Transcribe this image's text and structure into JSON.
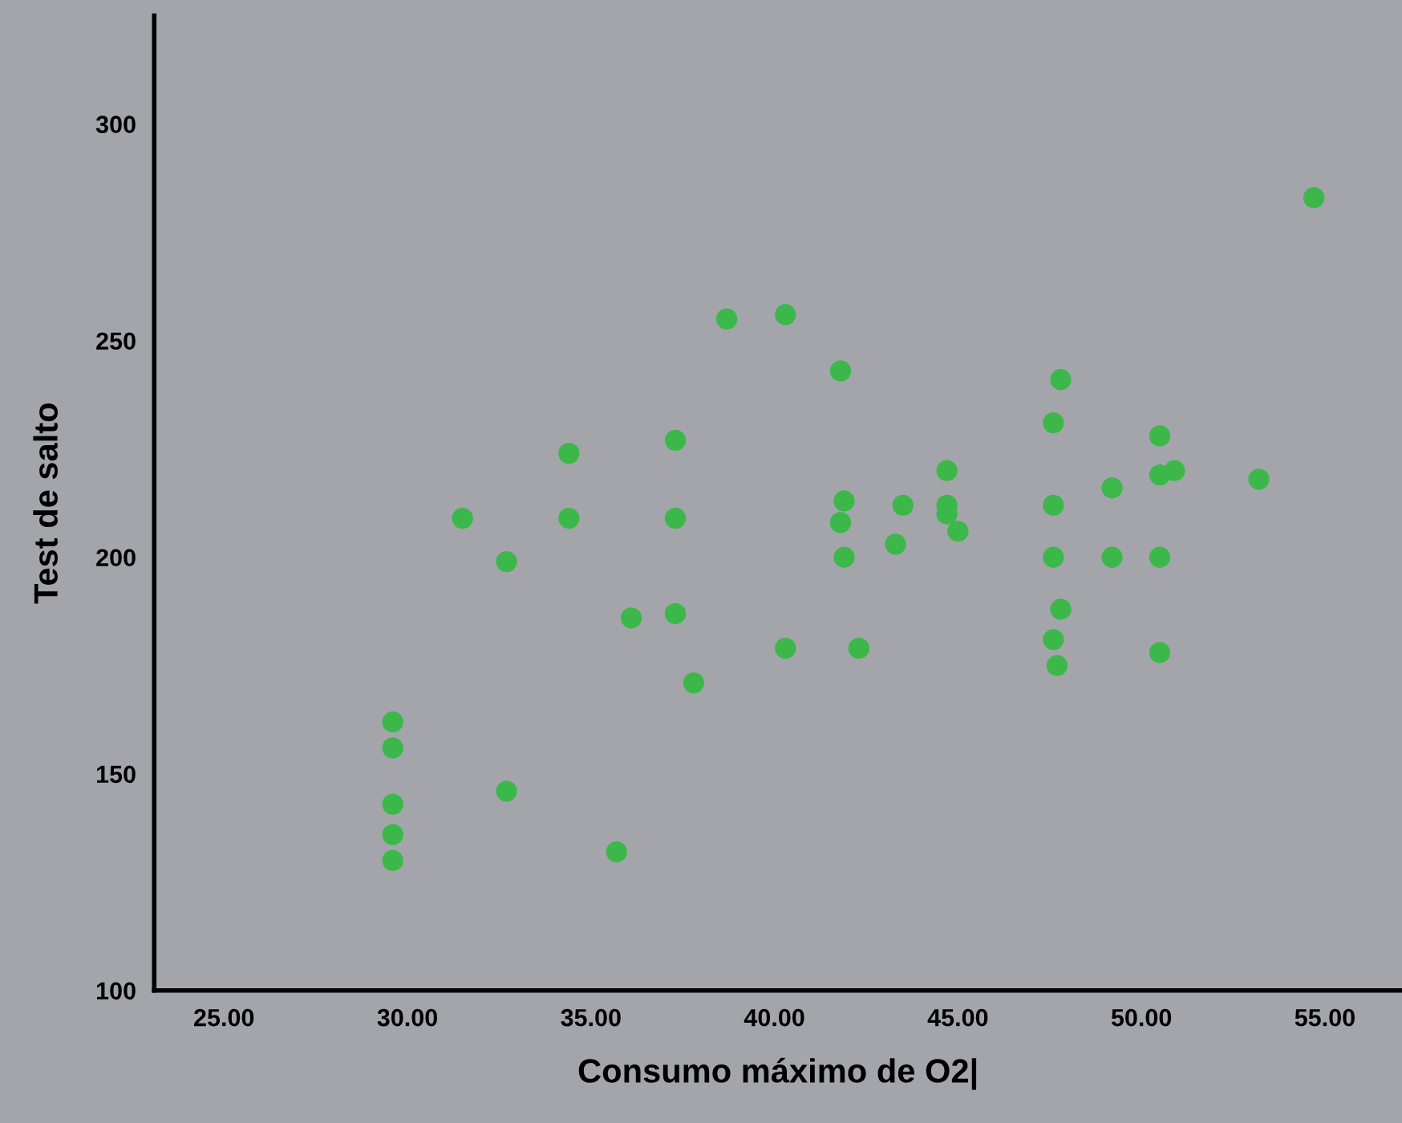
{
  "chart_data": {
    "type": "scatter",
    "xlabel": "Consumo máximo de O2|",
    "ylabel": "Test de salto",
    "xlim": [
      23.1,
      57.1
    ],
    "ylim": [
      100,
      325
    ],
    "xticks": [
      {
        "value": 25,
        "label": "25.00"
      },
      {
        "value": 30,
        "label": "30.00"
      },
      {
        "value": 35,
        "label": "35.00"
      },
      {
        "value": 40,
        "label": "40.00"
      },
      {
        "value": 45,
        "label": "45.00"
      },
      {
        "value": 50,
        "label": "50.00"
      },
      {
        "value": 55,
        "label": "55.00"
      }
    ],
    "yticks": [
      100,
      150,
      200,
      250,
      300
    ],
    "grid": false,
    "marker": "circle",
    "series": [
      {
        "color": "#3cb84a",
        "x": [
          29.6,
          29.6,
          29.6,
          29.6,
          29.6,
          31.5,
          32.7,
          32.7,
          34.4,
          34.4,
          35.7,
          36.1,
          37.3,
          37.3,
          37.3,
          37.8,
          38.7,
          40.3,
          40.3,
          41.8,
          41.8,
          41.9,
          41.9,
          42.3,
          43.3,
          43.5,
          44.7,
          44.7,
          44.7,
          45.0,
          47.6,
          47.6,
          47.6,
          47.6,
          47.8,
          47.8,
          47.7,
          49.2,
          49.2,
          50.5,
          50.5,
          50.9,
          50.5,
          50.5,
          53.2,
          54.7
        ],
        "values": [
          162,
          156,
          143,
          136,
          130,
          209,
          199,
          146,
          224,
          209,
          132,
          186,
          227,
          209,
          187,
          171,
          255,
          256,
          179,
          243,
          208,
          213,
          200,
          179,
          203,
          212,
          220,
          212,
          210,
          206,
          231,
          212,
          200,
          181,
          241,
          188,
          175,
          216,
          200,
          228,
          219,
          220,
          200,
          178,
          218,
          283
        ]
      }
    ]
  }
}
